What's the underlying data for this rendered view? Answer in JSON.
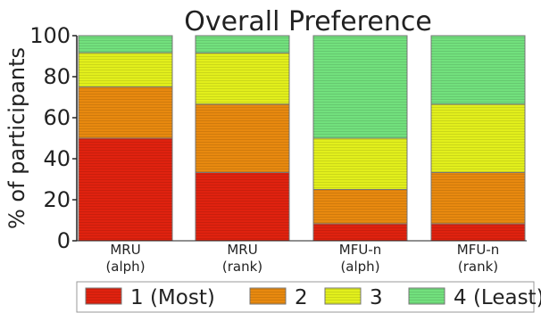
{
  "chart_data": {
    "type": "bar",
    "stacked": true,
    "title": "Overall Preference",
    "ylabel": "% of participants",
    "xlabel": "",
    "ylim": [
      0,
      100
    ],
    "yticks": [
      "0",
      "20",
      "40",
      "60",
      "80",
      "100"
    ],
    "categories": [
      [
        "MRU",
        "(alph)"
      ],
      [
        "MRU",
        "(rank)"
      ],
      [
        "MFU-n",
        "(alph)"
      ],
      [
        "MFU-n",
        "(rank)"
      ]
    ],
    "series": [
      {
        "name": "1 (Most)",
        "color": "#e0220f",
        "values": [
          50,
          33.3,
          8.3,
          8.3
        ]
      },
      {
        "name": "2",
        "color": "#e8890f",
        "values": [
          25,
          33.3,
          16.7,
          25
        ]
      },
      {
        "name": "3",
        "color": "#e2ef1c",
        "values": [
          16.7,
          25,
          25,
          33.3
        ]
      },
      {
        "name": "4 (Least)",
        "color": "#72e07d",
        "values": [
          8.3,
          8.4,
          50,
          33.4
        ]
      }
    ],
    "grid": false,
    "legend_position": "bottom"
  }
}
